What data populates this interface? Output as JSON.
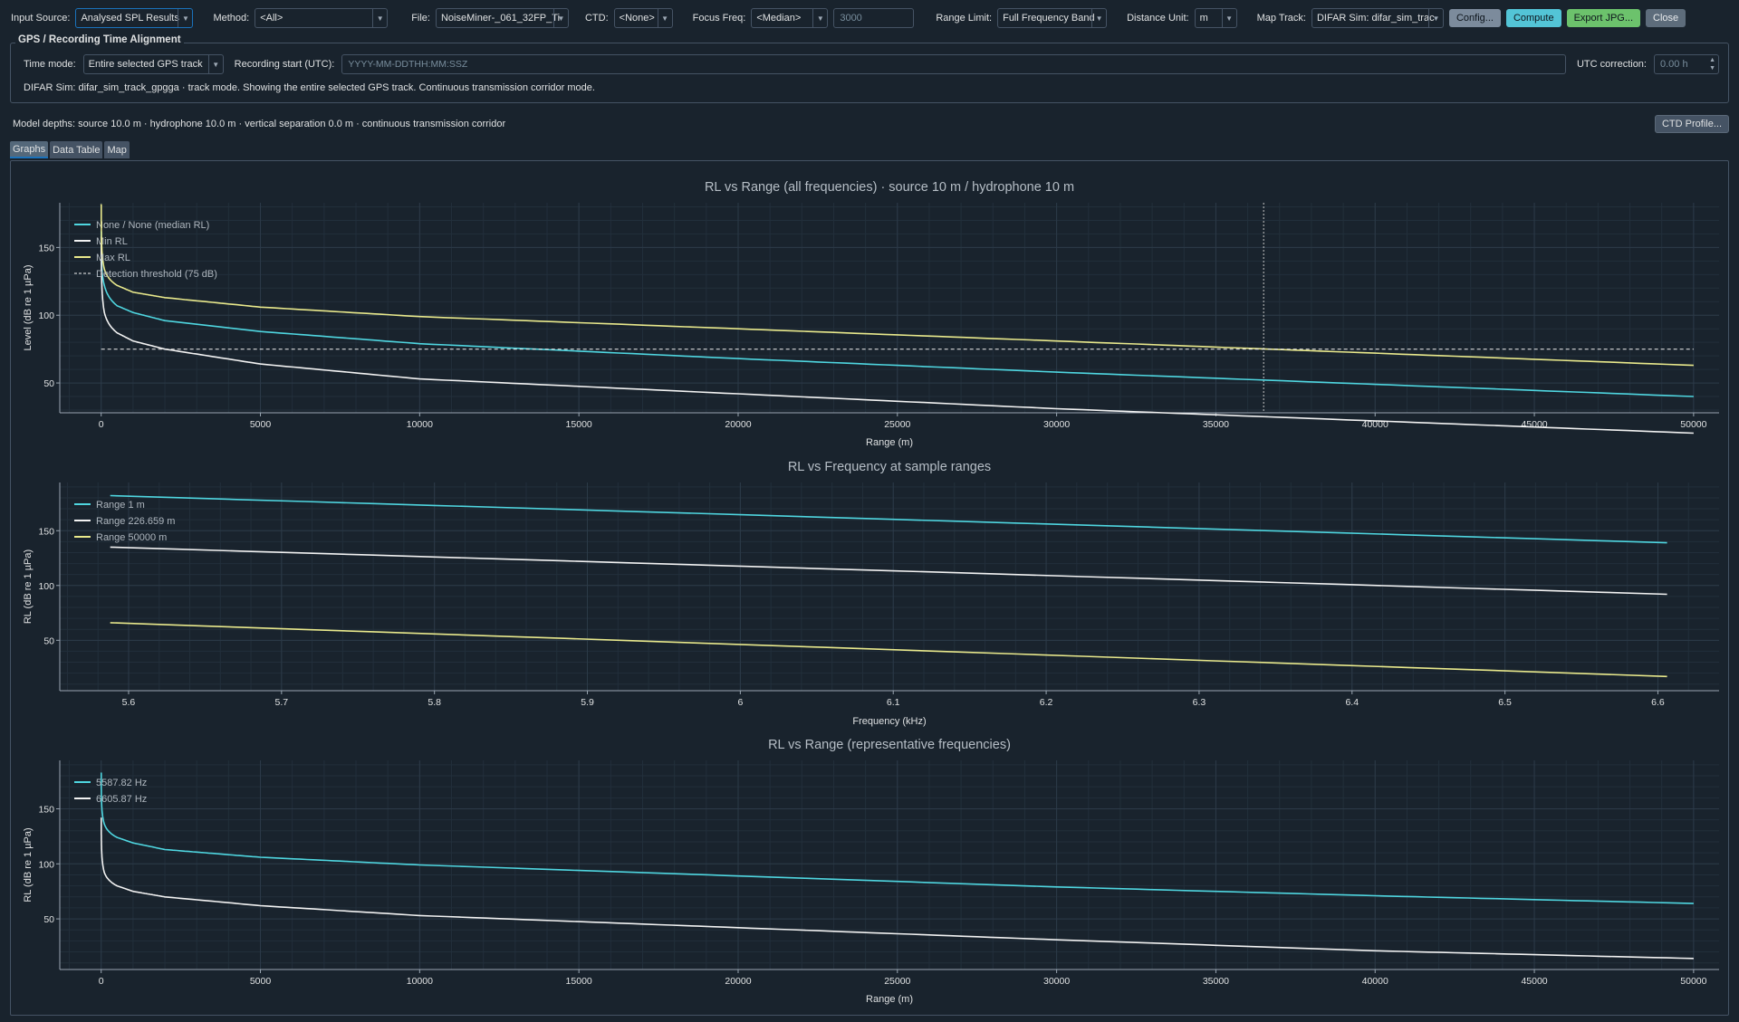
{
  "toolbar": {
    "input_source_label": "Input Source:",
    "input_source_value": "Analysed SPL Results",
    "method_label": "Method:",
    "method_value": "<All>",
    "file_label": "File:",
    "file_value": "NoiseMiner-_061_32FP_Ti",
    "ctd_label": "CTD:",
    "ctd_value": "<None>",
    "focus_freq_label": "Focus Freq:",
    "focus_freq_value": "<Median>",
    "focus_freq_number": "3000",
    "range_limit_label": "Range Limit:",
    "range_limit_value": "Full Frequency Band",
    "distance_unit_label": "Distance Unit:",
    "distance_unit_value": "m",
    "map_track_label": "Map Track:",
    "map_track_value": "DIFAR Sim: difar_sim_trac",
    "config_label": "Config...",
    "compute_label": "Compute",
    "export_label": "Export JPG...",
    "close_label": "Close"
  },
  "gps": {
    "title": "GPS / Recording Time Alignment",
    "time_mode_label": "Time mode:",
    "time_mode_value": "Entire selected GPS track",
    "recording_start_label": "Recording start (UTC):",
    "recording_start_placeholder": "YYYY-MM-DDTHH:MM:SSZ",
    "utc_correction_label": "UTC correction:",
    "utc_correction_value": "0.00 h",
    "status": "DIFAR Sim: difar_sim_track_gpgga · track mode. Showing the entire selected GPS track. Continuous transmission corridor mode."
  },
  "model_line": "Model depths: source 10.0 m · hydrophone 10.0 m · vertical separation 0.0 m · continuous transmission corridor",
  "ctd_profile_label": "CTD Profile...",
  "tabs": [
    "Graphs",
    "Data Table",
    "Map"
  ],
  "colors": {
    "background": "#19232d",
    "cyan": "#4fd6e0",
    "white": "#f2f2f2",
    "yellow": "#e9e98c",
    "grid": "#2c3a48",
    "axis": "#9aa6b2"
  },
  "chart_data": [
    {
      "type": "line",
      "title": "RL vs Range (all frequencies) · source 10 m / hydrophone 10 m",
      "xlabel": "Range (m)",
      "ylabel": "Level (dB re 1 µPa)",
      "xlim": [
        -1300,
        50800
      ],
      "ylim": [
        28,
        183
      ],
      "xticks": [
        0,
        5000,
        10000,
        15000,
        20000,
        25000,
        30000,
        35000,
        40000,
        45000,
        50000
      ],
      "yticks": [
        50,
        100,
        150
      ],
      "grid": true,
      "legend": "top-left",
      "cursor_x": 36500,
      "series": [
        {
          "name": "None / None (median RL)",
          "color": "cyan",
          "x": [
            1,
            10,
            100,
            500,
            1000,
            2000,
            5000,
            10000,
            20000,
            30000,
            40000,
            50000
          ],
          "y": [
            162,
            142,
            122,
            107,
            102,
            96,
            88,
            79,
            68,
            58,
            49,
            40
          ]
        },
        {
          "name": "Min RL",
          "color": "white",
          "x": [
            1,
            10,
            100,
            500,
            1000,
            2000,
            5000,
            10000,
            20000,
            30000,
            40000,
            50000
          ],
          "y": [
            158,
            132,
            102,
            87,
            81,
            75,
            64,
            53,
            42,
            31,
            22,
            13
          ]
        },
        {
          "name": "Max RL",
          "color": "yellow",
          "x": [
            1,
            10,
            100,
            500,
            1000,
            2000,
            5000,
            10000,
            20000,
            30000,
            40000,
            50000
          ],
          "y": [
            182,
            157,
            134,
            122,
            117,
            113,
            106,
            99,
            90,
            81,
            72,
            63
          ]
        },
        {
          "name": "Detection threshold (75 dB)",
          "color": "white",
          "dashed": true,
          "x": [
            0,
            50000
          ],
          "y": [
            75,
            75
          ]
        }
      ]
    },
    {
      "type": "line",
      "title": "RL vs Frequency at sample ranges",
      "xlabel": "Frequency (kHz)",
      "ylabel": "RL (dB re 1 µPa)",
      "xlim": [
        5.555,
        6.64
      ],
      "ylim": [
        4,
        194
      ],
      "xticks": [
        5.6,
        5.7,
        5.8,
        5.9,
        6.0,
        6.1,
        6.2,
        6.3,
        6.4,
        6.5,
        6.6
      ],
      "yticks": [
        50,
        100,
        150
      ],
      "grid": true,
      "legend": "top-left",
      "series": [
        {
          "name": "Range 1 m",
          "color": "cyan",
          "x": [
            5.588,
            6.606
          ],
          "y": [
            182,
            139
          ]
        },
        {
          "name": "Range 226.659 m",
          "color": "white",
          "x": [
            5.588,
            6.606
          ],
          "y": [
            135,
            92
          ]
        },
        {
          "name": "Range 50000 m",
          "color": "yellow",
          "x": [
            5.588,
            6.606
          ],
          "y": [
            66,
            17
          ]
        }
      ]
    },
    {
      "type": "line",
      "title": "RL vs Range (representative frequencies)",
      "xlabel": "Range (m)",
      "ylabel": "RL (dB re 1 µPa)",
      "xlim": [
        -1300,
        50800
      ],
      "ylim": [
        4,
        194
      ],
      "xticks": [
        0,
        5000,
        10000,
        15000,
        20000,
        25000,
        30000,
        35000,
        40000,
        45000,
        50000
      ],
      "yticks": [
        50,
        100,
        150
      ],
      "grid": true,
      "legend": "top-left",
      "series": [
        {
          "name": "5587.82 Hz",
          "color": "cyan",
          "x": [
            1,
            10,
            100,
            500,
            1000,
            2000,
            5000,
            10000,
            20000,
            30000,
            40000,
            50000
          ],
          "y": [
            183,
            158,
            136,
            124,
            119,
            113,
            106,
            99,
            89,
            79,
            71,
            64
          ]
        },
        {
          "name": "6605.87 Hz",
          "color": "white",
          "x": [
            1,
            10,
            100,
            500,
            1000,
            2000,
            5000,
            10000,
            20000,
            30000,
            40000,
            50000
          ],
          "y": [
            142,
            116,
            92,
            80,
            75,
            70,
            62,
            53,
            42,
            31,
            21,
            14
          ]
        }
      ]
    }
  ]
}
